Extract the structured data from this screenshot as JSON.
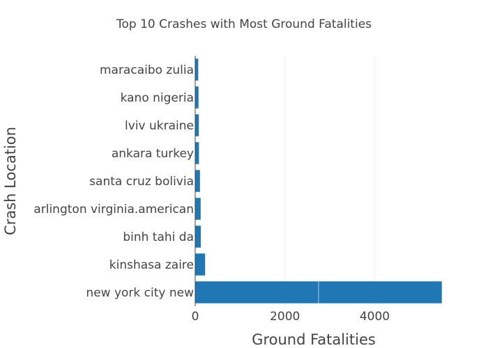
{
  "chart_data": {
    "type": "bar",
    "orientation": "horizontal",
    "title": "Top 10 Crashes with Most Ground Fatalities",
    "xlabel": "Ground Fatalities",
    "ylabel": "Crash Location",
    "xlim": [
      0,
      5500
    ],
    "xticks": [
      0,
      2000,
      4000
    ],
    "xtick_labels": [
      "0",
      "2000",
      "4000"
    ],
    "grid": true,
    "bar_color": "#1f77b4",
    "categories": [
      "maracaibo zulia",
      "kano nigeria",
      "lviv ukraine",
      "ankara turkey",
      "santa cruz bolivia",
      "arlington virginia.american",
      "binh tahi da",
      "kinshasa zaire",
      "new york city new"
    ],
    "bars": [
      {
        "category": "maracaibo zulia",
        "segments": [
          71
        ]
      },
      {
        "category": "kano nigeria",
        "segments": [
          78
        ]
      },
      {
        "category": "lviv ukraine",
        "segments": [
          85
        ]
      },
      {
        "category": "ankara turkey",
        "segments": [
          87
        ]
      },
      {
        "category": "santa cruz bolivia",
        "segments": [
          110
        ]
      },
      {
        "category": "arlington virginia.american",
        "segments": [
          125
        ]
      },
      {
        "category": "binh tahi da",
        "segments": [
          130
        ]
      },
      {
        "category": "kinshasa zaire",
        "segments": [
          225
        ]
      },
      {
        "category": "new york city new",
        "segments": [
          2750,
          2750
        ]
      }
    ]
  }
}
